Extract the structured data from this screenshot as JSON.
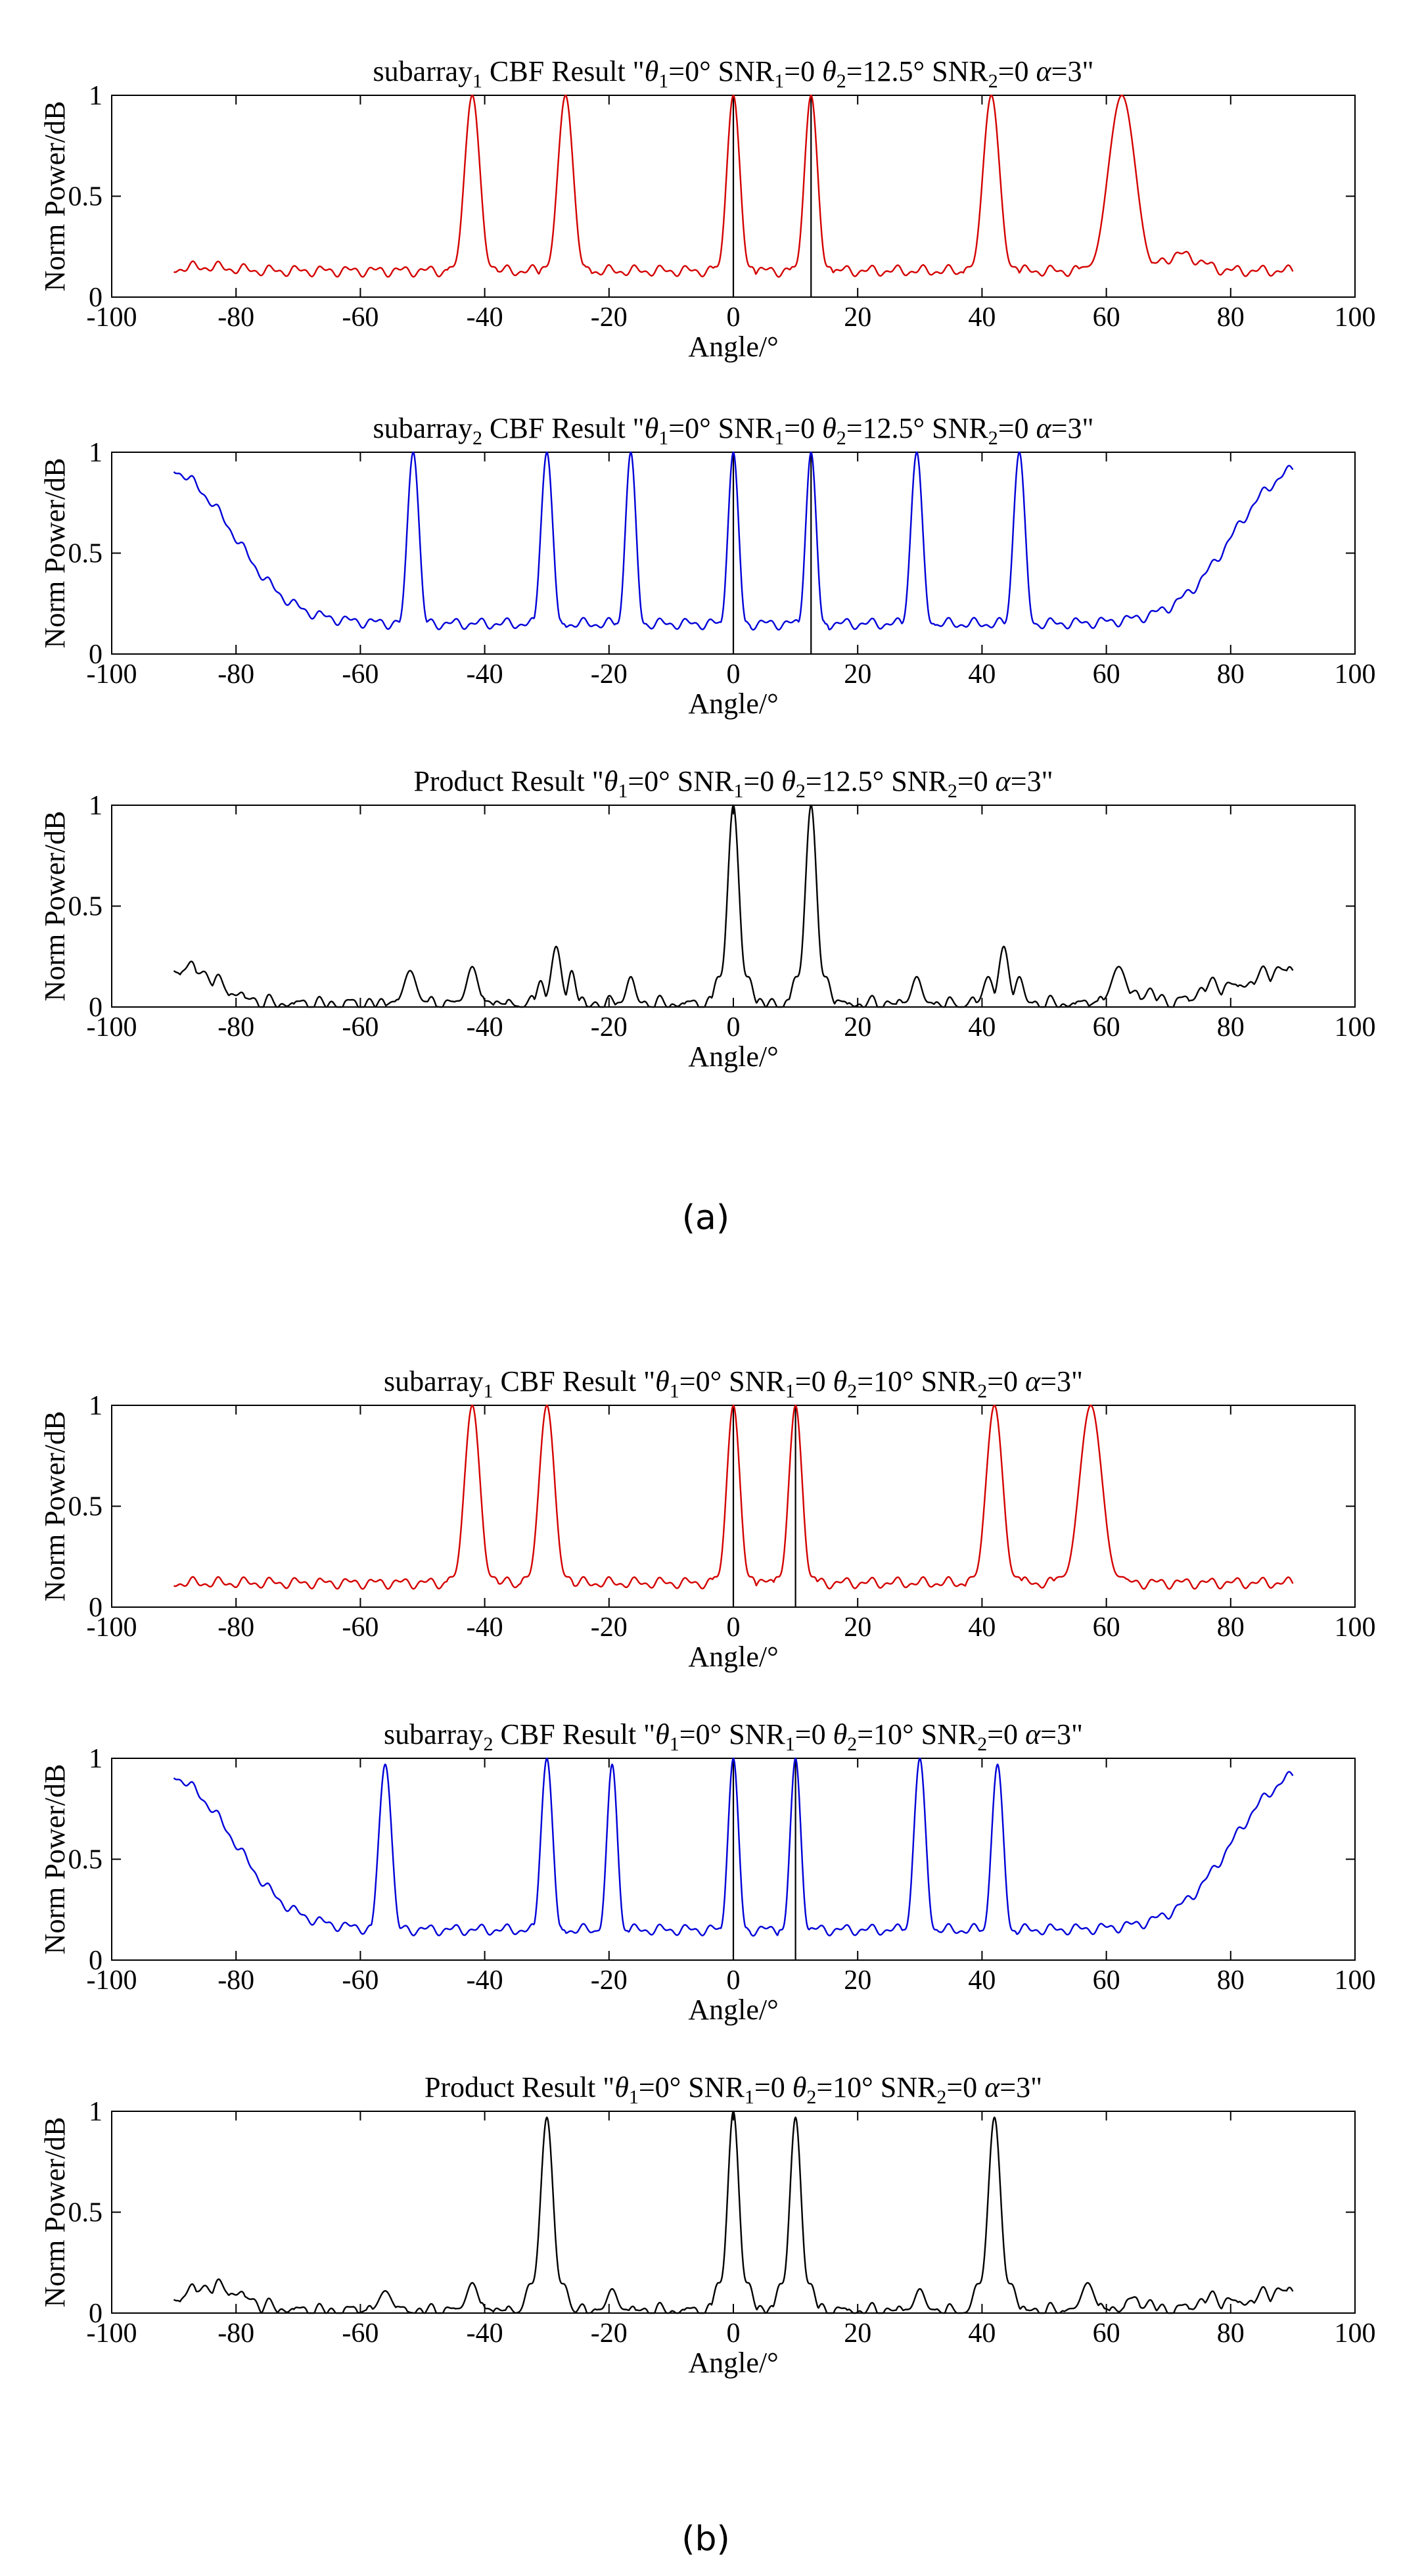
{
  "figure": {
    "panel_labels": [
      "(a)",
      "(b)"
    ]
  },
  "colors": {
    "subarray1": "#d40000",
    "subarray2": "#0000d8",
    "product": "#000000",
    "axis": "#000000"
  },
  "chart_data": [
    {
      "type": "line",
      "group": "(a)",
      "series_name": "subarray1",
      "color": "#d40000",
      "title_parts": [
        "subarray",
        "1",
        " CBF Result \"",
        "θ",
        "1",
        "=0° SNR",
        "1",
        "=0  ",
        "θ",
        "2",
        "=12.5° SNR",
        "2",
        "=0  ",
        "α",
        "=3\""
      ],
      "xlabel": "Angle/°",
      "ylabel": "Norm Power/dB",
      "xlim": [
        -100,
        100
      ],
      "ylim": [
        0,
        1
      ],
      "xticks": [
        "-100",
        "-80",
        "-60",
        "-40",
        "-20",
        "0",
        "20",
        "40",
        "60",
        "80",
        "100"
      ],
      "yticks": [
        "0",
        "0.5",
        "1"
      ],
      "floor": 0.13,
      "peaks": [
        {
          "x": -42,
          "y": 1.0,
          "w": 1.3
        },
        {
          "x": -27,
          "y": 1.0,
          "w": 1.3
        },
        {
          "x": 0,
          "y": 1.0,
          "w": 1.1
        },
        {
          "x": 12.5,
          "y": 1.0,
          "w": 1.1
        },
        {
          "x": 41.5,
          "y": 1.0,
          "w": 1.4
        },
        {
          "x": 62.5,
          "y": 1.0,
          "w": 2.3
        }
      ],
      "bumps": [
        {
          "x": -85,
          "y": 0.15,
          "w": 4
        },
        {
          "x": 72,
          "y": 0.21,
          "w": 3
        }
      ],
      "markers": [
        0,
        12.5
      ]
    },
    {
      "type": "line",
      "group": "(a)",
      "series_name": "subarray2",
      "color": "#0000d8",
      "title_parts": [
        "subarray",
        "2",
        " CBF Result \"",
        "θ",
        "1",
        "=0° SNR",
        "1",
        "=0  ",
        "θ",
        "2",
        "=12.5° SNR",
        "2",
        "=0  ",
        "α",
        "=3\""
      ],
      "xlabel": "Angle/°",
      "ylabel": "Norm Power/dB",
      "xlim": [
        -100,
        100
      ],
      "ylim": [
        0,
        1
      ],
      "xticks": [
        "-100",
        "-80",
        "-60",
        "-40",
        "-20",
        "0",
        "20",
        "40",
        "60",
        "80",
        "100"
      ],
      "yticks": [
        "0",
        "0.5",
        "1"
      ],
      "floor": 0.15,
      "edges": {
        "left": -80,
        "right": 80,
        "width": 4.5
      },
      "peaks": [
        {
          "x": -51.5,
          "y": 1.0,
          "w": 1.0
        },
        {
          "x": -30,
          "y": 1.0,
          "w": 1.0
        },
        {
          "x": -16.5,
          "y": 1.0,
          "w": 0.9
        },
        {
          "x": 0,
          "y": 1.0,
          "w": 0.9
        },
        {
          "x": 12.5,
          "y": 1.0,
          "w": 0.9
        },
        {
          "x": 29.5,
          "y": 1.0,
          "w": 1.0
        },
        {
          "x": 46,
          "y": 1.0,
          "w": 1.0
        }
      ],
      "bumps": [],
      "markers": [
        0,
        12.5
      ]
    },
    {
      "type": "line",
      "group": "(a)",
      "series_name": "product",
      "color": "#000000",
      "title_parts": [
        "Product Result \"",
        "θ",
        "1",
        "=0° SNR",
        "1",
        "=0  ",
        "θ",
        "2",
        "=12.5° SNR",
        "2",
        "=0  ",
        "α",
        "=3\""
      ],
      "xlabel": "Angle/°",
      "ylabel": "Norm Power/dB",
      "xlim": [
        -100,
        100
      ],
      "ylim": [
        0,
        1
      ],
      "xticks": [
        "-100",
        "-80",
        "-60",
        "-40",
        "-20",
        "0",
        "20",
        "40",
        "60",
        "80",
        "100"
      ],
      "yticks": [
        "0",
        "0.5",
        "1"
      ],
      "floor": 0.0,
      "peaks": [
        {
          "x": 0,
          "y": 1.0,
          "w": 0.9
        },
        {
          "x": 12.5,
          "y": 1.0,
          "w": 0.9
        },
        {
          "x": -52,
          "y": 0.18,
          "w": 1.0
        },
        {
          "x": -42,
          "y": 0.2,
          "w": 0.9
        },
        {
          "x": -28.5,
          "y": 0.3,
          "w": 0.8
        },
        {
          "x": -26,
          "y": 0.18,
          "w": 0.6
        },
        {
          "x": -31,
          "y": 0.13,
          "w": 0.6
        },
        {
          "x": -16.5,
          "y": 0.15,
          "w": 0.7
        },
        {
          "x": 29.5,
          "y": 0.15,
          "w": 0.8
        },
        {
          "x": 41,
          "y": 0.15,
          "w": 0.8
        },
        {
          "x": 43.5,
          "y": 0.3,
          "w": 0.8
        },
        {
          "x": 46,
          "y": 0.15,
          "w": 0.7
        },
        {
          "x": 62,
          "y": 0.2,
          "w": 1.2
        }
      ],
      "bumps": [
        {
          "x": -88,
          "y": 0.18,
          "w": 5
        },
        {
          "x": 88,
          "y": 0.17,
          "w": 5
        },
        {
          "x": 77,
          "y": 0.08,
          "w": 2.5
        },
        {
          "x": 66,
          "y": 0.06,
          "w": 2
        }
      ],
      "ripple": 0.04,
      "markers": []
    },
    {
      "type": "line",
      "group": "(b)",
      "series_name": "subarray1",
      "color": "#d40000",
      "title_parts": [
        "subarray",
        "1",
        " CBF Result \"",
        "θ",
        "1",
        "=0° SNR",
        "1",
        "=0  ",
        "θ",
        "2",
        "=10° SNR",
        "2",
        "=0  ",
        "α",
        "=3\""
      ],
      "xlabel": "Angle/°",
      "ylabel": "Norm Power/dB",
      "xlim": [
        -100,
        100
      ],
      "ylim": [
        0,
        1
      ],
      "xticks": [
        "-100",
        "-80",
        "-60",
        "-40",
        "-20",
        "0",
        "20",
        "40",
        "60",
        "80",
        "100"
      ],
      "yticks": [
        "0",
        "0.5",
        "1"
      ],
      "floor": 0.12,
      "peaks": [
        {
          "x": -42,
          "y": 1.0,
          "w": 1.3
        },
        {
          "x": -30,
          "y": 1.0,
          "w": 1.3
        },
        {
          "x": 0,
          "y": 1.0,
          "w": 1.1
        },
        {
          "x": 10,
          "y": 1.0,
          "w": 1.1
        },
        {
          "x": 42,
          "y": 1.0,
          "w": 1.4
        },
        {
          "x": 57.5,
          "y": 1.0,
          "w": 1.9
        }
      ],
      "bumps": [],
      "markers": [
        0,
        10
      ]
    },
    {
      "type": "line",
      "group": "(b)",
      "series_name": "subarray2",
      "color": "#0000d8",
      "title_parts": [
        "subarray",
        "2",
        " CBF Result \"",
        "θ",
        "1",
        "=0° SNR",
        "1",
        "=0  ",
        "θ",
        "2",
        "=10° SNR",
        "2",
        "=0  ",
        "α",
        "=3\""
      ],
      "xlabel": "Angle/°",
      "ylabel": "Norm Power/dB",
      "xlim": [
        -100,
        100
      ],
      "ylim": [
        0,
        1
      ],
      "xticks": [
        "-100",
        "-80",
        "-60",
        "-40",
        "-20",
        "0",
        "20",
        "40",
        "60",
        "80",
        "100"
      ],
      "yticks": [
        "0",
        "0.5",
        "1"
      ],
      "floor": 0.15,
      "edges": {
        "left": -80,
        "right": 80,
        "width": 4.5
      },
      "peaks": [
        {
          "x": -56,
          "y": 0.97,
          "w": 1.1
        },
        {
          "x": -30,
          "y": 1.0,
          "w": 1.0
        },
        {
          "x": -19.5,
          "y": 0.97,
          "w": 0.9
        },
        {
          "x": 0,
          "y": 1.0,
          "w": 0.9
        },
        {
          "x": 10,
          "y": 1.0,
          "w": 0.9
        },
        {
          "x": 30,
          "y": 1.0,
          "w": 1.0
        },
        {
          "x": 42.5,
          "y": 0.97,
          "w": 1.0
        }
      ],
      "bumps": [],
      "markers": [
        0,
        10
      ]
    },
    {
      "type": "line",
      "group": "(b)",
      "series_name": "product",
      "color": "#000000",
      "title_parts": [
        "Product Result \"",
        "θ",
        "1",
        "=0° SNR",
        "1",
        "=0  ",
        "θ",
        "2",
        "=10° SNR",
        "2",
        "=0  ",
        "α",
        "=3\""
      ],
      "xlabel": "Angle/°",
      "ylabel": "Norm Power/dB",
      "xlim": [
        -100,
        100
      ],
      "ylim": [
        0,
        1
      ],
      "xticks": [
        "-100",
        "-80",
        "-60",
        "-40",
        "-20",
        "0",
        "20",
        "40",
        "60",
        "80",
        "100"
      ],
      "yticks": [
        "0",
        "0.5",
        "1"
      ],
      "floor": 0.0,
      "peaks": [
        {
          "x": -30,
          "y": 0.97,
          "w": 1.0
        },
        {
          "x": 0,
          "y": 1.0,
          "w": 0.9
        },
        {
          "x": 10,
          "y": 0.97,
          "w": 0.9
        },
        {
          "x": 42,
          "y": 0.97,
          "w": 1.0
        },
        {
          "x": -56,
          "y": 0.11,
          "w": 1.0
        },
        {
          "x": -42,
          "y": 0.15,
          "w": 0.9
        },
        {
          "x": -19.5,
          "y": 0.12,
          "w": 0.8
        },
        {
          "x": 30,
          "y": 0.12,
          "w": 0.8
        },
        {
          "x": 57,
          "y": 0.15,
          "w": 1.0
        }
      ],
      "bumps": [
        {
          "x": -84,
          "y": 0.12,
          "w": 5
        },
        {
          "x": 88,
          "y": 0.1,
          "w": 4
        },
        {
          "x": 77,
          "y": 0.06,
          "w": 2.5
        },
        {
          "x": 65,
          "y": 0.05,
          "w": 2
        }
      ],
      "ripple": 0.035,
      "markers": []
    }
  ]
}
